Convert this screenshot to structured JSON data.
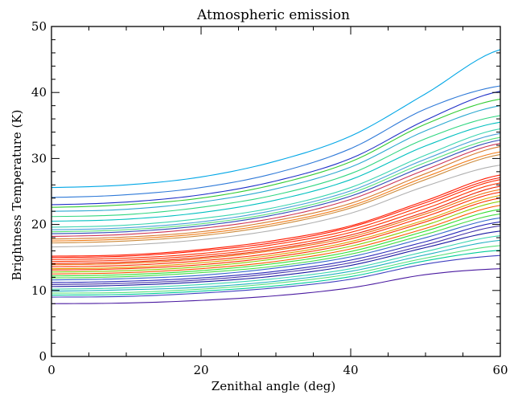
{
  "chart_data": {
    "type": "line",
    "title": "Atmospheric emission",
    "xlabel": "Zenithal angle (deg)",
    "ylabel": "Brightness Temperature (K)",
    "xlim": [
      0,
      60
    ],
    "ylim": [
      0,
      50
    ],
    "xticks": [
      0,
      20,
      40,
      60
    ],
    "yticks": [
      0,
      10,
      20,
      30,
      40,
      50
    ],
    "x_minor_step": 5,
    "y_minor_step": 2,
    "grid": false,
    "legend": "none",
    "curve_model": "T(z) = T0 / cos(z)",
    "x": [
      0,
      10,
      20,
      30,
      40,
      50,
      60
    ],
    "series": [
      {
        "color": "#00a6e6",
        "values": [
          25.6,
          26.0,
          27.2,
          29.6,
          33.4,
          39.8,
          46.5
        ]
      },
      {
        "color": "#2f7ad8",
        "values": [
          24.1,
          24.5,
          25.6,
          27.8,
          31.5,
          37.5,
          41.0
        ]
      },
      {
        "color": "#1f2fc8",
        "values": [
          23.0,
          23.4,
          24.5,
          26.6,
          30.0,
          35.8,
          40.2
        ]
      },
      {
        "color": "#33cc33",
        "values": [
          22.6,
          23.0,
          24.0,
          26.1,
          29.5,
          35.2,
          39.0
        ]
      },
      {
        "color": "#2aa8d0",
        "values": [
          22.0,
          22.3,
          23.4,
          25.4,
          28.7,
          34.2,
          38.0
        ]
      },
      {
        "color": "#2fd680",
        "values": [
          21.2,
          21.5,
          22.6,
          24.5,
          27.7,
          33.0,
          36.5
        ]
      },
      {
        "color": "#00bfbf",
        "values": [
          20.5,
          20.8,
          21.8,
          23.7,
          26.8,
          31.9,
          35.5
        ]
      },
      {
        "color": "#3ad4b0",
        "values": [
          19.6,
          19.9,
          20.9,
          22.6,
          25.6,
          30.5,
          34.5
        ]
      },
      {
        "color": "#4aa0d8",
        "values": [
          19.2,
          19.5,
          20.4,
          22.2,
          25.1,
          29.9,
          33.8
        ]
      },
      {
        "color": "#55e07a",
        "values": [
          18.9,
          19.2,
          20.1,
          21.8,
          24.7,
          29.4,
          33.2
        ]
      },
      {
        "color": "#2e4bb8",
        "values": [
          18.6,
          18.9,
          19.8,
          21.5,
          24.3,
          28.9,
          32.8
        ]
      },
      {
        "color": "#cc3355",
        "values": [
          18.2,
          18.5,
          19.4,
          21.0,
          23.8,
          28.3,
          32.3
        ]
      },
      {
        "color": "#d87a2a",
        "values": [
          17.8,
          18.1,
          18.9,
          20.6,
          23.2,
          27.7,
          31.8
        ]
      },
      {
        "color": "#f27d18",
        "values": [
          17.5,
          17.8,
          18.6,
          20.2,
          22.8,
          27.2,
          31.0
        ]
      },
      {
        "color": "#cc8a3a",
        "values": [
          17.2,
          17.5,
          18.3,
          19.9,
          22.5,
          26.8,
          30.6
        ]
      },
      {
        "color": "#b0b0b0",
        "values": [
          16.6,
          16.9,
          17.7,
          19.2,
          21.7,
          25.8,
          29.0
        ]
      },
      {
        "color": "#ff1a00",
        "values": [
          15.2,
          15.4,
          16.2,
          17.6,
          19.8,
          23.6,
          27.5
        ]
      },
      {
        "color": "#ff1a00",
        "values": [
          15.0,
          15.2,
          16.0,
          17.3,
          19.6,
          23.3,
          27.1
        ]
      },
      {
        "color": "#ff2a00",
        "values": [
          14.7,
          14.9,
          15.6,
          17.0,
          19.2,
          22.9,
          26.8
        ]
      },
      {
        "color": "#ff3300",
        "values": [
          14.4,
          14.6,
          15.3,
          16.6,
          18.8,
          22.4,
          26.3
        ]
      },
      {
        "color": "#ee2200",
        "values": [
          14.1,
          14.3,
          15.0,
          16.3,
          18.4,
          21.9,
          25.8
        ]
      },
      {
        "color": "#f07010",
        "values": [
          13.9,
          14.1,
          14.8,
          16.1,
          18.1,
          21.6,
          25.3
        ]
      },
      {
        "color": "#ff2a00",
        "values": [
          13.6,
          13.8,
          14.5,
          15.7,
          17.8,
          21.2,
          24.9
        ]
      },
      {
        "color": "#e0a000",
        "values": [
          13.3,
          13.5,
          14.2,
          15.4,
          17.4,
          20.7,
          24.4
        ]
      },
      {
        "color": "#ff3300",
        "values": [
          13.1,
          13.3,
          13.9,
          15.1,
          17.1,
          20.4,
          24.0
        ]
      },
      {
        "color": "#88cc00",
        "values": [
          12.8,
          13.0,
          13.6,
          14.8,
          16.7,
          19.9,
          23.5
        ]
      },
      {
        "color": "#ff5500",
        "values": [
          12.5,
          12.7,
          13.3,
          14.4,
          16.3,
          19.4,
          22.9
        ]
      },
      {
        "color": "#33e033",
        "values": [
          12.2,
          12.4,
          13.0,
          14.1,
          15.9,
          19.0,
          22.3
        ]
      },
      {
        "color": "#44dd44",
        "values": [
          11.9,
          12.1,
          12.7,
          13.7,
          15.5,
          18.5,
          21.6
        ]
      },
      {
        "color": "#3366cc",
        "values": [
          11.6,
          11.8,
          12.3,
          13.4,
          15.1,
          18.0,
          21.0
        ]
      },
      {
        "color": "#2a2ab8",
        "values": [
          11.2,
          11.4,
          11.9,
          12.9,
          14.6,
          17.4,
          20.4
        ]
      },
      {
        "color": "#4433aa",
        "values": [
          10.9,
          11.1,
          11.6,
          12.6,
          14.2,
          16.9,
          19.8
        ]
      },
      {
        "color": "#1a1aa0",
        "values": [
          10.6,
          10.8,
          11.3,
          12.2,
          13.8,
          16.5,
          19.0
        ]
      },
      {
        "color": "#3ad4b0",
        "values": [
          10.2,
          10.4,
          10.9,
          11.8,
          13.3,
          15.9,
          18.3
        ]
      },
      {
        "color": "#20b0c0",
        "values": [
          9.9,
          10.1,
          10.5,
          11.4,
          12.9,
          15.4,
          17.6
        ]
      },
      {
        "color": "#55e07a",
        "values": [
          9.6,
          9.7,
          10.2,
          11.1,
          12.5,
          14.9,
          16.8
        ]
      },
      {
        "color": "#00cc99",
        "values": [
          9.3,
          9.4,
          9.9,
          10.7,
          12.1,
          14.5,
          16.1
        ]
      },
      {
        "color": "#4040c0",
        "values": [
          9.0,
          9.1,
          9.6,
          10.4,
          11.7,
          14.0,
          15.3
        ]
      },
      {
        "color": "#4a1aa0",
        "values": [
          8.0,
          8.1,
          8.5,
          9.2,
          10.4,
          12.4,
          13.3
        ]
      }
    ]
  }
}
